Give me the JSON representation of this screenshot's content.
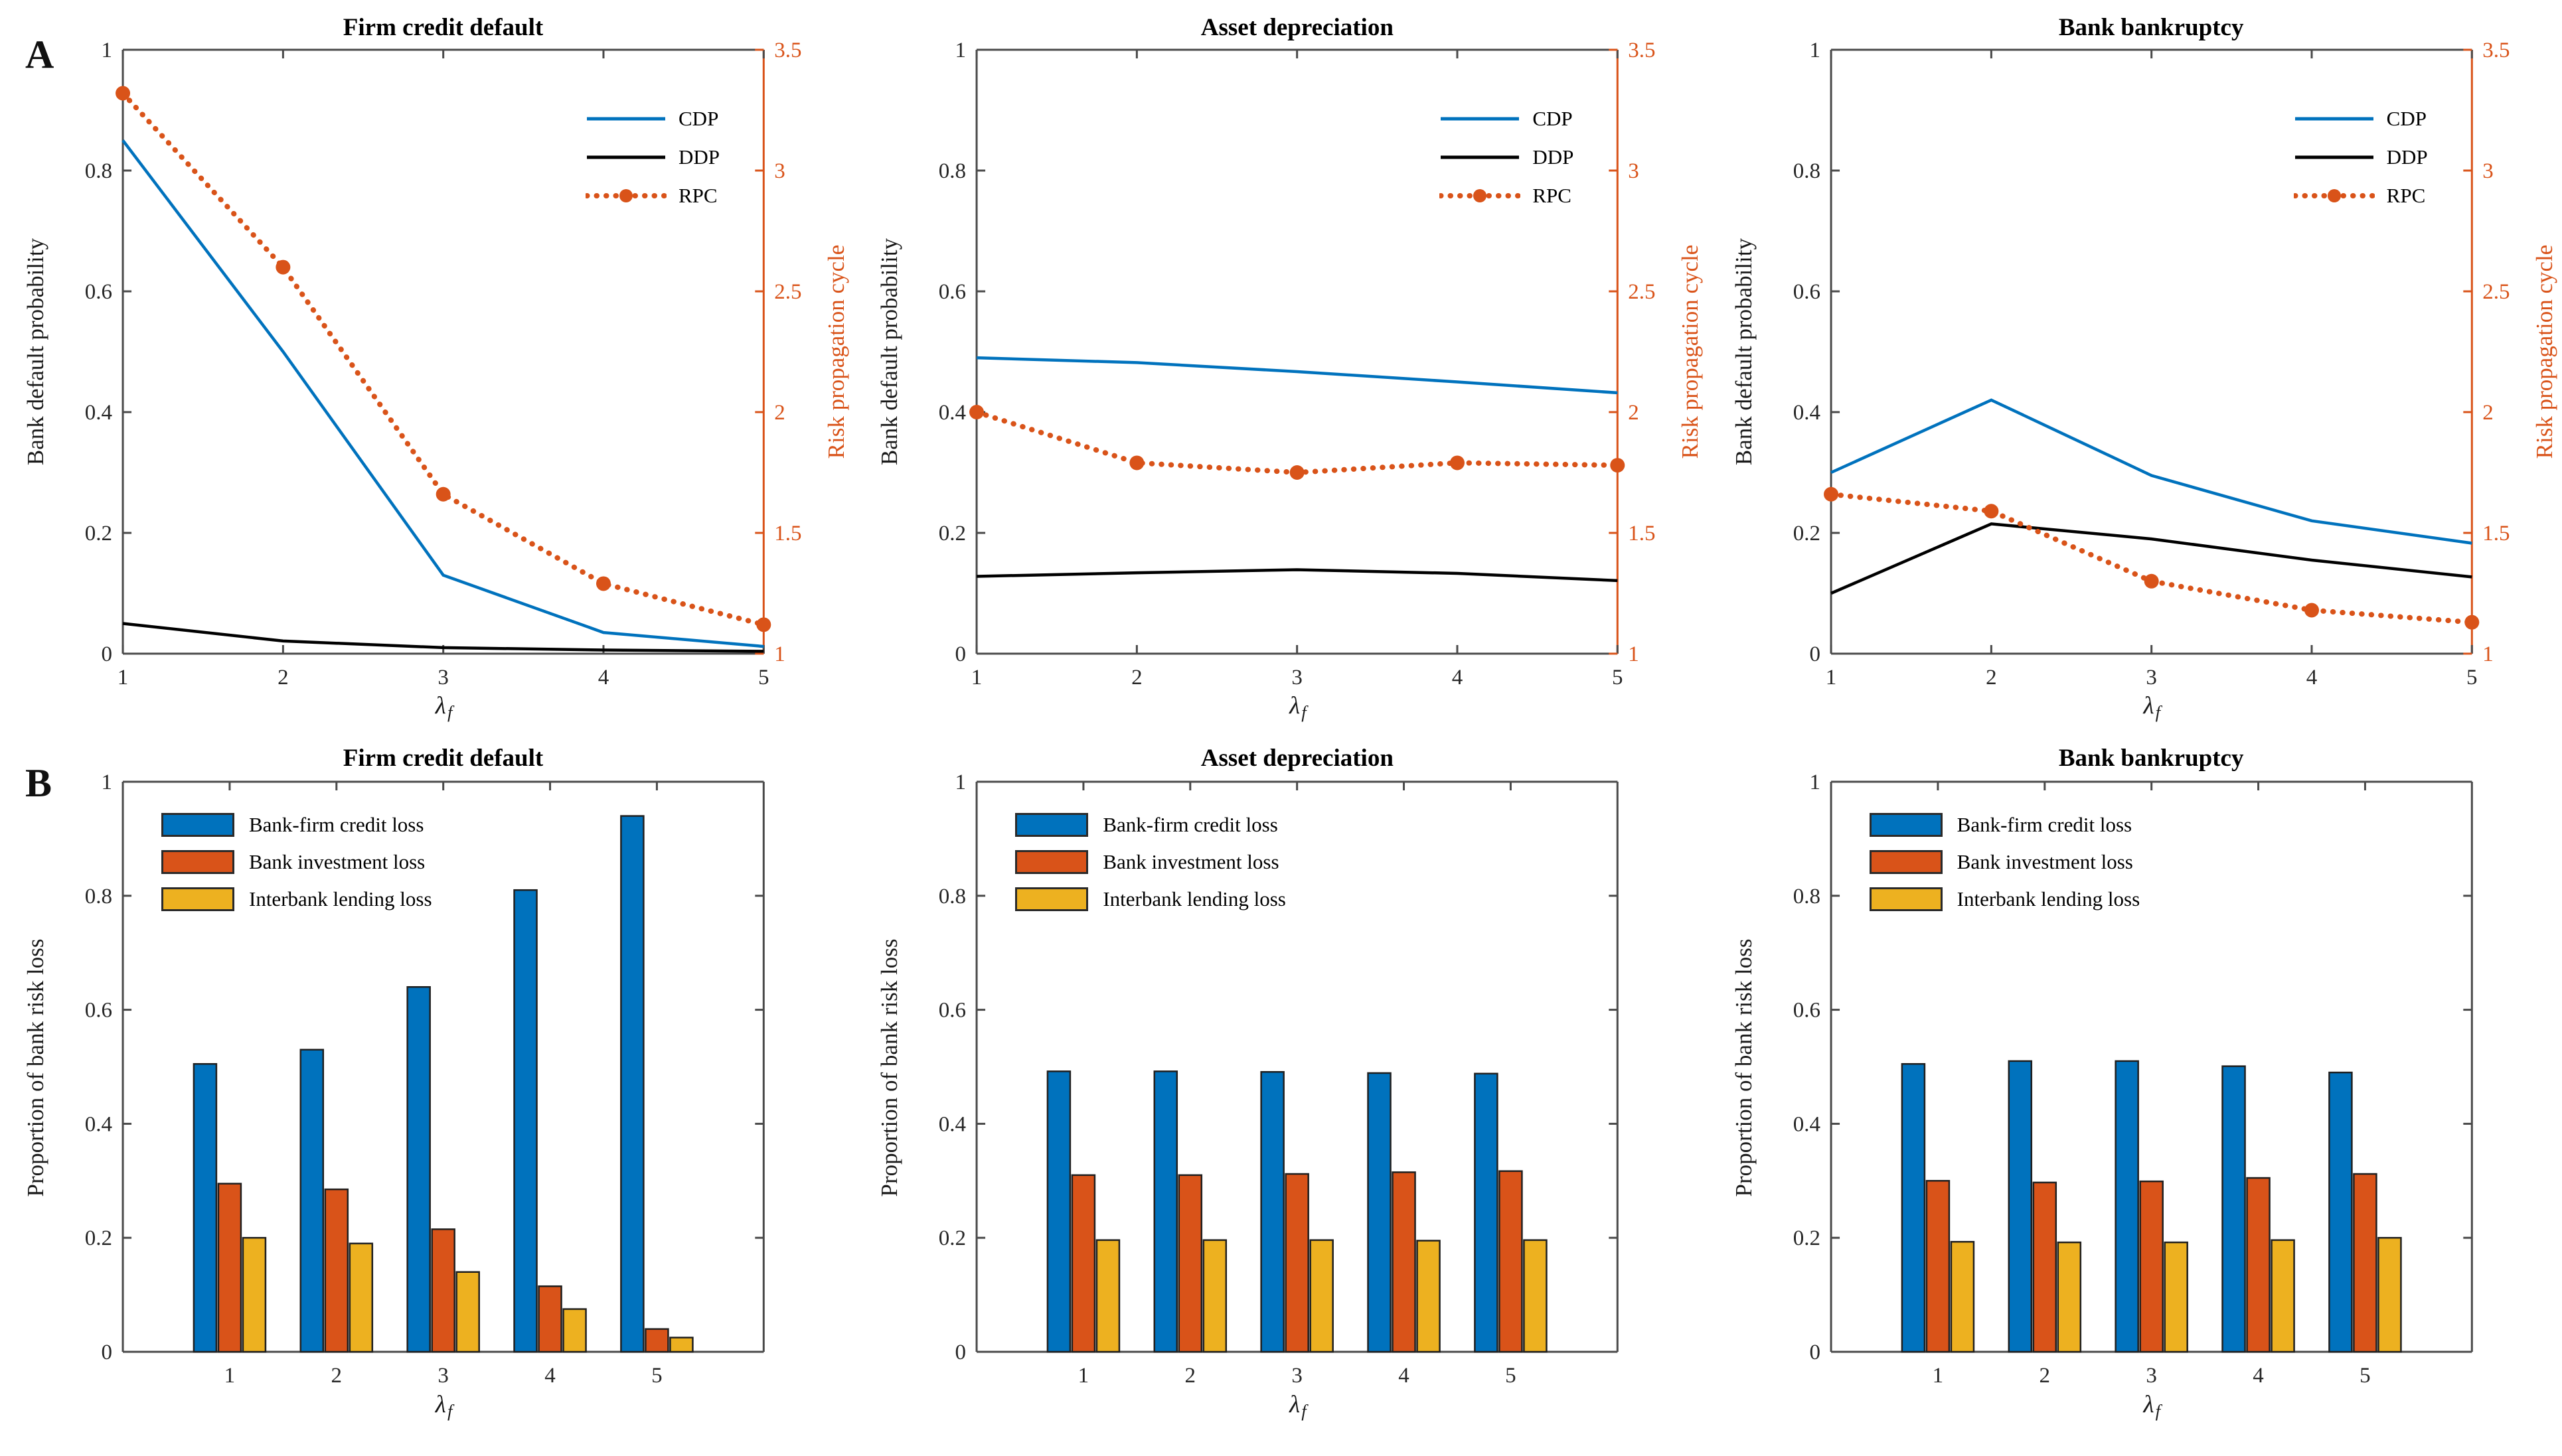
{
  "figure": {
    "row_labels": [
      {
        "text": "A"
      },
      {
        "text": "B"
      }
    ]
  },
  "colors": {
    "blue": "#0072BD",
    "orange": "#D95319",
    "yellow": "#EDB120",
    "black": "#000000",
    "axis": "#4a4a4a",
    "tick_text": "#262626"
  },
  "chart_data": [
    {
      "type": "line",
      "title": "Firm credit default",
      "xlabel_base": "λ",
      "xlabel_sub": "f",
      "ylabel_left": "Bank default probability",
      "ylabel_right": "Risk propagation cycle",
      "x": [
        1,
        2,
        3,
        4,
        5
      ],
      "xlim": [
        1,
        5
      ],
      "xticks": [
        "1",
        "2",
        "3",
        "4",
        "5"
      ],
      "ylim_left": [
        0,
        1
      ],
      "yticks_left": [
        "0",
        "0.2",
        "0.4",
        "0.6",
        "0.8",
        "1"
      ],
      "ylim_right": [
        1,
        3.5
      ],
      "yticks_right": [
        "1",
        "1.5",
        "2",
        "2.5",
        "3",
        "3.5"
      ],
      "legend_position": "top-right",
      "grid": false,
      "series": [
        {
          "name": "CDP",
          "axis": "left",
          "color_key": "blue",
          "line": "solid",
          "marker": "none",
          "values": [
            0.85,
            0.5,
            0.13,
            0.035,
            0.012
          ]
        },
        {
          "name": "DDP",
          "axis": "left",
          "color_key": "black",
          "line": "solid",
          "marker": "none",
          "values": [
            0.05,
            0.021,
            0.01,
            0.006,
            0.004
          ]
        },
        {
          "name": "RPC",
          "axis": "right",
          "color_key": "orange",
          "line": "dotted",
          "marker": "circle",
          "values": [
            3.32,
            2.6,
            1.66,
            1.29,
            1.12
          ]
        }
      ]
    },
    {
      "type": "line",
      "title": "Asset depreciation",
      "xlabel_base": "λ",
      "xlabel_sub": "f",
      "ylabel_left": "Bank default probability",
      "ylabel_right": "Risk propagation cycle",
      "x": [
        1,
        2,
        3,
        4,
        5
      ],
      "xlim": [
        1,
        5
      ],
      "xticks": [
        "1",
        "2",
        "3",
        "4",
        "5"
      ],
      "ylim_left": [
        0,
        1
      ],
      "yticks_left": [
        "0",
        "0.2",
        "0.4",
        "0.6",
        "0.8",
        "1"
      ],
      "ylim_right": [
        1,
        3.5
      ],
      "yticks_right": [
        "1",
        "1.5",
        "2",
        "2.5",
        "3",
        "3.5"
      ],
      "legend_position": "top-right",
      "grid": false,
      "series": [
        {
          "name": "CDP",
          "axis": "left",
          "color_key": "blue",
          "line": "solid",
          "marker": "none",
          "values": [
            0.49,
            0.482,
            0.467,
            0.45,
            0.432
          ]
        },
        {
          "name": "DDP",
          "axis": "left",
          "color_key": "black",
          "line": "solid",
          "marker": "none",
          "values": [
            0.128,
            0.134,
            0.139,
            0.133,
            0.121
          ]
        },
        {
          "name": "RPC",
          "axis": "right",
          "color_key": "orange",
          "line": "dotted",
          "marker": "circle",
          "values": [
            2.0,
            1.79,
            1.75,
            1.79,
            1.78
          ]
        }
      ]
    },
    {
      "type": "line",
      "title": "Bank bankruptcy",
      "xlabel_base": "λ",
      "xlabel_sub": "f",
      "ylabel_left": "Bank default probability",
      "ylabel_right": "Risk propagation cycle",
      "x": [
        1,
        2,
        3,
        4,
        5
      ],
      "xlim": [
        1,
        5
      ],
      "xticks": [
        "1",
        "2",
        "3",
        "4",
        "5"
      ],
      "ylim_left": [
        0,
        1
      ],
      "yticks_left": [
        "0",
        "0.2",
        "0.4",
        "0.6",
        "0.8",
        "1"
      ],
      "ylim_right": [
        1,
        3.5
      ],
      "yticks_right": [
        "1",
        "1.5",
        "2",
        "2.5",
        "3",
        "3.5"
      ],
      "legend_position": "top-right",
      "grid": false,
      "series": [
        {
          "name": "CDP",
          "axis": "left",
          "color_key": "blue",
          "line": "solid",
          "marker": "none",
          "values": [
            0.3,
            0.42,
            0.295,
            0.22,
            0.183
          ]
        },
        {
          "name": "DDP",
          "axis": "left",
          "color_key": "black",
          "line": "solid",
          "marker": "none",
          "values": [
            0.1,
            0.215,
            0.19,
            0.155,
            0.127
          ]
        },
        {
          "name": "RPC",
          "axis": "right",
          "color_key": "orange",
          "line": "dotted",
          "marker": "circle",
          "values": [
            1.66,
            1.59,
            1.3,
            1.18,
            1.13
          ]
        }
      ]
    },
    {
      "type": "bar",
      "title": "Firm credit default",
      "xlabel_base": "λ",
      "xlabel_sub": "f",
      "ylabel_left": "Proportion of bank risk loss",
      "categories": [
        "1",
        "2",
        "3",
        "4",
        "5"
      ],
      "xlim": [
        0,
        6
      ],
      "ylim_left": [
        0,
        1
      ],
      "yticks_left": [
        "0",
        "0.2",
        "0.4",
        "0.6",
        "0.8",
        "1"
      ],
      "legend_position": "top-left",
      "grid": false,
      "series": [
        {
          "name": "Bank-firm credit loss",
          "color_key": "blue",
          "values": [
            0.505,
            0.53,
            0.64,
            0.81,
            0.94
          ]
        },
        {
          "name": "Bank investment loss",
          "color_key": "orange",
          "values": [
            0.295,
            0.285,
            0.215,
            0.115,
            0.04
          ]
        },
        {
          "name": "Interbank lending loss",
          "color_key": "yellow",
          "values": [
            0.2,
            0.19,
            0.14,
            0.075,
            0.025
          ]
        }
      ]
    },
    {
      "type": "bar",
      "title": "Asset depreciation",
      "xlabel_base": "λ",
      "xlabel_sub": "f",
      "ylabel_left": "Proportion of bank risk loss",
      "categories": [
        "1",
        "2",
        "3",
        "4",
        "5"
      ],
      "xlim": [
        0,
        6
      ],
      "ylim_left": [
        0,
        1
      ],
      "yticks_left": [
        "0",
        "0.2",
        "0.4",
        "0.6",
        "0.8",
        "1"
      ],
      "legend_position": "top-left",
      "grid": false,
      "series": [
        {
          "name": "Bank-firm credit loss",
          "color_key": "blue",
          "values": [
            0.492,
            0.492,
            0.491,
            0.489,
            0.488
          ]
        },
        {
          "name": "Bank investment loss",
          "color_key": "orange",
          "values": [
            0.31,
            0.31,
            0.312,
            0.315,
            0.317
          ]
        },
        {
          "name": "Interbank lending loss",
          "color_key": "yellow",
          "values": [
            0.196,
            0.196,
            0.196,
            0.195,
            0.196
          ]
        }
      ]
    },
    {
      "type": "bar",
      "title": "Bank bankruptcy",
      "xlabel_base": "λ",
      "xlabel_sub": "f",
      "ylabel_left": "Proportion of bank risk loss",
      "categories": [
        "1",
        "2",
        "3",
        "4",
        "5"
      ],
      "xlim": [
        0,
        6
      ],
      "ylim_left": [
        0,
        1
      ],
      "yticks_left": [
        "0",
        "0.2",
        "0.4",
        "0.6",
        "0.8",
        "1"
      ],
      "legend_position": "top-left",
      "grid": false,
      "series": [
        {
          "name": "Bank-firm credit loss",
          "color_key": "blue",
          "values": [
            0.505,
            0.51,
            0.51,
            0.501,
            0.49
          ]
        },
        {
          "name": "Bank investment loss",
          "color_key": "orange",
          "values": [
            0.3,
            0.297,
            0.299,
            0.305,
            0.312
          ]
        },
        {
          "name": "Interbank lending loss",
          "color_key": "yellow",
          "values": [
            0.193,
            0.192,
            0.192,
            0.196,
            0.2
          ]
        }
      ]
    }
  ]
}
